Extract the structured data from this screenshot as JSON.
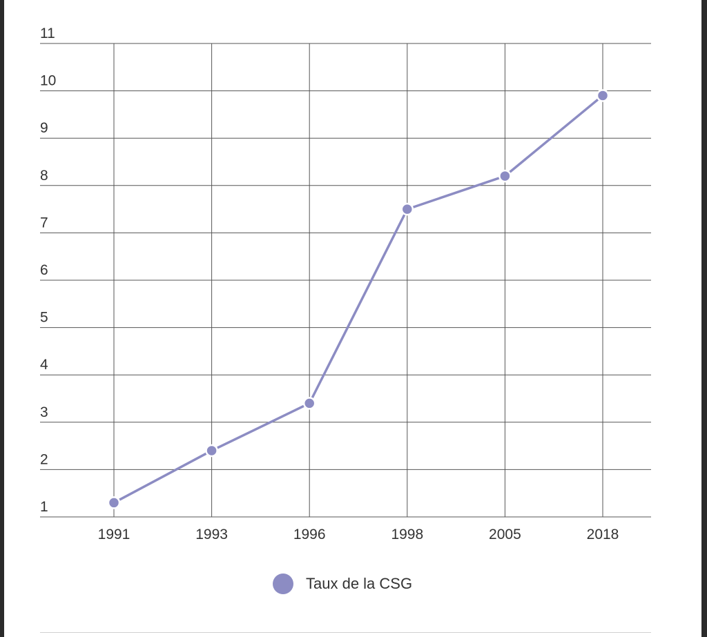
{
  "chart_data": {
    "type": "line",
    "categories": [
      "1991",
      "1993",
      "1996",
      "1998",
      "2005",
      "2018"
    ],
    "series": [
      {
        "name": "Taux de la CSG",
        "values": [
          1.3,
          2.4,
          3.4,
          7.5,
          8.2,
          9.9
        ],
        "color": "#8c8cc3"
      }
    ],
    "y_ticks": [
      "1",
      "2",
      "3",
      "4",
      "5",
      "6",
      "7",
      "8",
      "9",
      "10",
      "11"
    ],
    "ylim": [
      1,
      11
    ],
    "grid": true,
    "legend_position": "bottom-center",
    "title": "",
    "xlabel": "",
    "ylabel": ""
  },
  "colors": {
    "line": "#8c8cc3",
    "grid": "#555555",
    "marker_outline": "#ffffff"
  }
}
